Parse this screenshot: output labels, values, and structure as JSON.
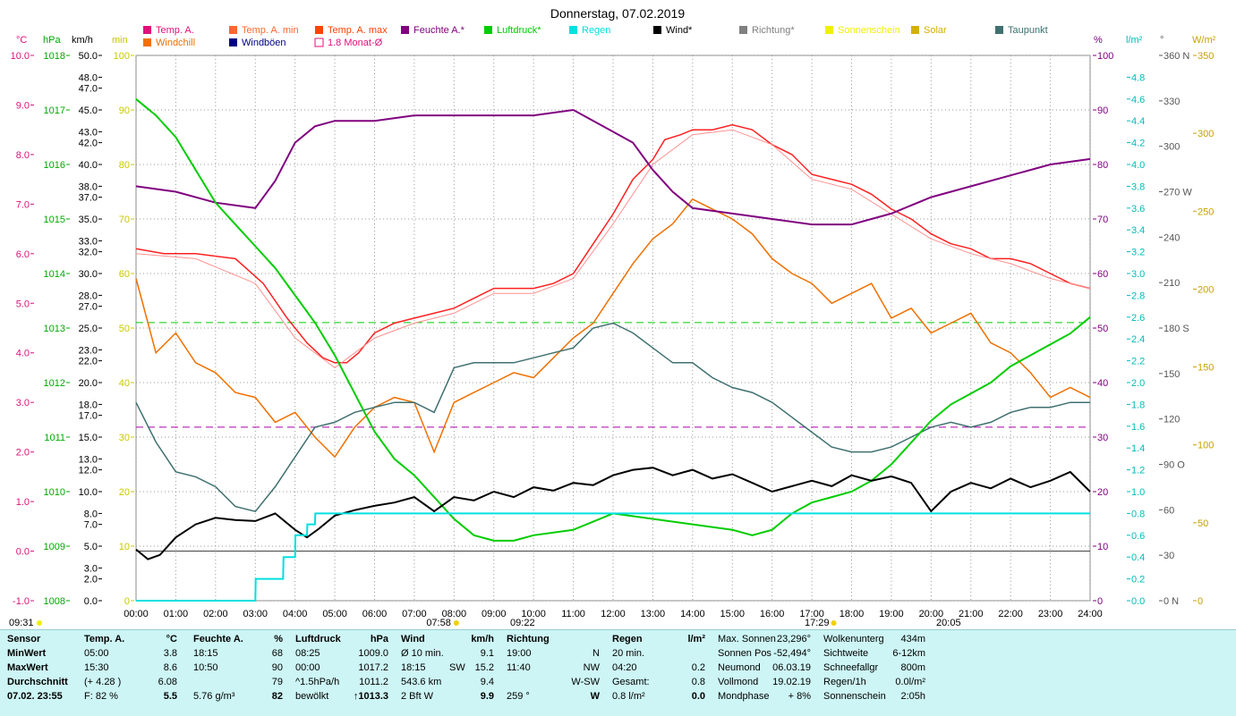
{
  "title": "Donnerstag, 07.02.2019",
  "legend": [
    {
      "label": "Temp. A.",
      "color": "#e0107a"
    },
    {
      "label": "Windchill",
      "color": "#f07000"
    },
    {
      "label": "Temp. A. min",
      "color": "#ff6633"
    },
    {
      "label": "Windböen",
      "color": "#000080"
    },
    {
      "label": "Temp. A. max",
      "color": "#ff4400"
    },
    {
      "label": "1.8 Monat-Ø",
      "color": "#e0107a"
    },
    {
      "label": "Feuchte A.*",
      "color": "#800080"
    },
    {
      "label": "Luftdruck*",
      "color": "#00cc00"
    },
    {
      "label": "Regen",
      "color": "#00e0e0"
    },
    {
      "label": "Wind*",
      "color": "#000000"
    },
    {
      "label": "Richtung*",
      "color": "#808080"
    },
    {
      "label": "Sonnenschein",
      "color": "#f0f000"
    },
    {
      "label": "Solar",
      "color": "#d4b000"
    },
    {
      "label": "Taupunkt",
      "color": "#407070"
    }
  ],
  "axis_units": {
    "temp": "°C",
    "hpa": "hPa",
    "kmh": "km/h",
    "min": "min",
    "pct": "%",
    "rain": "l/m²",
    "deg": "°",
    "solar": "W/m²"
  },
  "axis_ticks": {
    "temp": [
      "10.0",
      "9.0",
      "8.0",
      "7.0",
      "6.0",
      "5.0",
      "4.0",
      "3.0",
      "2.0",
      "1.0",
      "0.0",
      "-1.0"
    ],
    "hpa": [
      "1018",
      "1017",
      "1016",
      "1015",
      "1014",
      "1013",
      "1012",
      "1011",
      "1010",
      "1009",
      "1008"
    ],
    "kmh": [
      "50.0",
      "48.0",
      "47.0",
      "45.0",
      "43.0",
      "42.0",
      "40.0",
      "38.0",
      "37.0",
      "35.0",
      "33.0",
      "32.0",
      "30.0",
      "28.0",
      "27.0",
      "25.0",
      "23.0",
      "22.0",
      "20.0",
      "18.0",
      "17.0",
      "15.0",
      "13.0",
      "12.0",
      "10.0",
      "8.0",
      "7.0",
      "5.0",
      "3.0",
      "2.0",
      "0.0"
    ],
    "min": [
      "100",
      "90",
      "80",
      "70",
      "60",
      "50",
      "40",
      "30",
      "20",
      "10",
      "0"
    ],
    "pct": [
      "100",
      "90",
      "80",
      "70",
      "60",
      "50",
      "40",
      "30",
      "20",
      "10",
      "0"
    ],
    "rain": [
      "4.8",
      "4.6",
      "4.4",
      "4.2",
      "4.0",
      "3.8",
      "3.6",
      "3.4",
      "3.2",
      "3.0",
      "2.8",
      "2.6",
      "2.4",
      "2.2",
      "2.0",
      "1.8",
      "1.6",
      "1.4",
      "1.2",
      "1.0",
      "0.8",
      "0.6",
      "0.4",
      "0.2",
      "0.0"
    ],
    "deg": [
      "360 N",
      "330",
      "300",
      "270 W",
      "240",
      "210",
      "180 S",
      "150",
      "120",
      "90 O",
      "60",
      "30",
      "0 N"
    ],
    "solar": [
      "350",
      "300",
      "250",
      "200",
      "150",
      "100",
      "50",
      "0"
    ],
    "time": [
      "00:00",
      "01:00",
      "02:00",
      "03:00",
      "04:00",
      "05:00",
      "06:00",
      "07:00",
      "08:00",
      "09:00",
      "10:00",
      "11:00",
      "12:00",
      "13:00",
      "14:00",
      "15:00",
      "16:00",
      "17:00",
      "18:00",
      "19:00",
      "20:00",
      "21:00",
      "22:00",
      "23:00",
      "24:00"
    ]
  },
  "markers": {
    "moon_left": "09:31",
    "sunrise": "07:58",
    "noon": "09:22",
    "sunset": "17:29",
    "moonset": "20:05"
  },
  "chart_data": {
    "type": "line",
    "title": "Donnerstag, 07.02.2019",
    "x_unit": "hour",
    "x_range": [
      0,
      24
    ],
    "series": [
      {
        "name": "Temp. A.",
        "unit": "°C",
        "axis": "temp",
        "range": [
          -1,
          10
        ],
        "color": "#ff2020",
        "x": [
          0,
          0.7,
          1.5,
          2.5,
          3.2,
          3.8,
          4.3,
          4.7,
          5.0,
          5.3,
          5.6,
          6.0,
          6.5,
          7.0,
          7.5,
          8.0,
          8.5,
          9.0,
          9.5,
          10.0,
          10.5,
          11.0,
          11.5,
          12.0,
          12.5,
          13.0,
          13.3,
          13.7,
          14.0,
          14.5,
          15.0,
          15.5,
          16.0,
          16.5,
          17.0,
          17.5,
          18.0,
          18.5,
          19.0,
          19.5,
          20.0,
          20.5,
          21.0,
          21.5,
          22.0,
          22.5,
          23.0,
          23.5,
          24.0
        ],
        "y": [
          6.1,
          6.0,
          6.0,
          5.9,
          5.4,
          4.7,
          4.2,
          3.9,
          3.8,
          3.8,
          4.0,
          4.4,
          4.6,
          4.7,
          4.8,
          4.9,
          5.1,
          5.3,
          5.3,
          5.3,
          5.4,
          5.6,
          6.2,
          6.8,
          7.5,
          7.9,
          8.3,
          8.4,
          8.5,
          8.5,
          8.6,
          8.5,
          8.2,
          8.0,
          7.6,
          7.5,
          7.4,
          7.2,
          6.9,
          6.7,
          6.4,
          6.2,
          6.1,
          5.9,
          5.9,
          5.8,
          5.6,
          5.4,
          5.3
        ]
      },
      {
        "name": "Temp. A. min",
        "unit": "°C",
        "axis": "temp",
        "range": [
          -1,
          10
        ],
        "color": "#ff9090",
        "x": [
          0,
          1.5,
          3.0,
          4.0,
          5.0,
          6.0,
          7.0,
          8.0,
          9.0,
          10.0,
          11.0,
          12.0,
          13.0,
          14.0,
          15.0,
          16.0,
          17.0,
          18.0,
          19.0,
          20.0,
          21.0,
          22.0,
          23.0,
          24.0
        ],
        "y": [
          6.0,
          5.9,
          5.4,
          4.3,
          3.7,
          4.3,
          4.6,
          4.8,
          5.2,
          5.2,
          5.5,
          6.6,
          7.8,
          8.4,
          8.5,
          8.2,
          7.5,
          7.3,
          6.8,
          6.3,
          6.0,
          5.8,
          5.5,
          5.3
        ]
      },
      {
        "name": "Windchill",
        "unit": "°C",
        "axis": "temp",
        "range": [
          -1,
          10
        ],
        "color": "#f07000",
        "x": [
          0,
          0.5,
          1.0,
          1.5,
          2.0,
          2.5,
          3.0,
          3.5,
          4.0,
          4.5,
          5.0,
          5.5,
          6.0,
          6.5,
          7.0,
          7.5,
          8.0,
          8.5,
          9.0,
          9.5,
          10.0,
          10.5,
          11.0,
          11.5,
          12.0,
          12.5,
          13.0,
          13.5,
          14.0,
          14.5,
          15.0,
          15.5,
          16.0,
          16.5,
          17.0,
          17.5,
          18.0,
          18.5,
          19.0,
          19.5,
          20.0,
          20.5,
          21.0,
          21.5,
          22.0,
          22.5,
          23.0,
          23.5,
          24.0
        ],
        "y": [
          5.5,
          4.0,
          4.4,
          3.8,
          3.6,
          3.2,
          3.1,
          2.6,
          2.8,
          2.3,
          1.9,
          2.5,
          2.9,
          3.1,
          3.0,
          2.0,
          3.0,
          3.2,
          3.4,
          3.6,
          3.5,
          3.9,
          4.3,
          4.6,
          5.2,
          5.8,
          6.3,
          6.6,
          7.1,
          6.9,
          6.7,
          6.4,
          5.9,
          5.6,
          5.4,
          5.0,
          5.2,
          5.4,
          4.7,
          4.9,
          4.4,
          4.6,
          4.8,
          4.2,
          4.0,
          3.6,
          3.1,
          3.3,
          3.1
        ]
      },
      {
        "name": "Taupunkt",
        "unit": "°C",
        "axis": "temp",
        "range": [
          -1,
          10
        ],
        "color": "#407070",
        "x": [
          0,
          0.5,
          1.0,
          1.5,
          2.0,
          2.5,
          3.0,
          3.5,
          4.0,
          4.5,
          5.0,
          5.5,
          6.0,
          6.5,
          7.0,
          7.5,
          8.0,
          8.5,
          9.0,
          9.5,
          10.0,
          10.5,
          11.0,
          11.5,
          12.0,
          12.5,
          13.0,
          13.5,
          14.0,
          14.5,
          15.0,
          15.5,
          16.0,
          16.5,
          17.0,
          17.5,
          18.0,
          18.5,
          19.0,
          19.5,
          20.0,
          20.5,
          21.0,
          21.5,
          22.0,
          22.5,
          23.0,
          23.5,
          24.0
        ],
        "y": [
          3.0,
          2.2,
          1.6,
          1.5,
          1.3,
          0.9,
          0.8,
          1.3,
          1.9,
          2.5,
          2.6,
          2.8,
          2.9,
          3.0,
          3.0,
          2.8,
          3.7,
          3.8,
          3.8,
          3.8,
          3.9,
          4.0,
          4.1,
          4.5,
          4.6,
          4.4,
          4.1,
          3.8,
          3.8,
          3.5,
          3.3,
          3.2,
          3.0,
          2.7,
          2.4,
          2.1,
          2.0,
          2.0,
          2.1,
          2.3,
          2.5,
          2.6,
          2.5,
          2.6,
          2.8,
          2.9,
          2.9,
          3.0,
          3.0
        ]
      },
      {
        "name": "Feuchte A.*",
        "unit": "%",
        "axis": "pct",
        "range": [
          0,
          100
        ],
        "color": "#800080",
        "x": [
          0,
          1.0,
          2.0,
          3.0,
          3.5,
          4.0,
          4.5,
          5.0,
          6.0,
          7.0,
          8.0,
          9.0,
          10.0,
          11.0,
          12.0,
          12.5,
          13.0,
          13.5,
          14.0,
          15.0,
          16.0,
          17.0,
          18.0,
          19.0,
          20.0,
          21.0,
          22.0,
          23.0,
          24.0
        ],
        "y": [
          76,
          75,
          73,
          72,
          77,
          84,
          87,
          88,
          88,
          89,
          89,
          89,
          89,
          90,
          86,
          84,
          79,
          75,
          72,
          71,
          70,
          69,
          69,
          71,
          74,
          76,
          78,
          80,
          81
        ]
      },
      {
        "name": "Luftdruck*",
        "unit": "hPa",
        "axis": "hpa",
        "range": [
          1008,
          1018
        ],
        "color": "#00cc00",
        "x": [
          0,
          0.5,
          1.0,
          1.5,
          2.0,
          2.5,
          3.0,
          3.5,
          4.0,
          4.5,
          5.0,
          5.5,
          6.0,
          6.5,
          7.0,
          7.5,
          8.0,
          8.5,
          9.0,
          9.5,
          10.0,
          11.0,
          12.0,
          13.0,
          14.0,
          15.0,
          15.5,
          16.0,
          16.5,
          17.0,
          17.5,
          18.0,
          18.5,
          19.0,
          19.5,
          20.0,
          20.5,
          21.0,
          21.5,
          22.0,
          22.5,
          23.0,
          23.5,
          24.0
        ],
        "y": [
          1017.2,
          1016.9,
          1016.5,
          1015.9,
          1015.3,
          1014.9,
          1014.5,
          1014.1,
          1013.6,
          1013.1,
          1012.5,
          1011.8,
          1011.1,
          1010.6,
          1010.3,
          1009.9,
          1009.5,
          1009.2,
          1009.1,
          1009.1,
          1009.2,
          1009.3,
          1009.6,
          1009.5,
          1009.4,
          1009.3,
          1009.2,
          1009.3,
          1009.6,
          1009.8,
          1009.9,
          1010.0,
          1010.2,
          1010.5,
          1010.9,
          1011.3,
          1011.6,
          1011.8,
          1012.0,
          1012.3,
          1012.5,
          1012.7,
          1012.9,
          1013.2
        ]
      },
      {
        "name": "Wind*",
        "unit": "km/h",
        "axis": "kmh",
        "range": [
          0,
          50
        ],
        "color": "#000000",
        "x": [
          0,
          0.3,
          0.6,
          1.0,
          1.5,
          2.0,
          2.5,
          3.0,
          3.5,
          4.0,
          4.3,
          4.6,
          5.0,
          5.5,
          6.0,
          6.5,
          7.0,
          7.5,
          8.0,
          8.5,
          9.0,
          9.5,
          10.0,
          10.5,
          11.0,
          11.5,
          12.0,
          12.5,
          13.0,
          13.5,
          14.0,
          14.5,
          15.0,
          15.5,
          16.0,
          16.5,
          17.0,
          17.5,
          18.0,
          18.5,
          19.0,
          19.5,
          20.0,
          20.5,
          21.0,
          21.5,
          22.0,
          22.5,
          23.0,
          23.5,
          24.0
        ],
        "y": [
          4.7,
          3.8,
          4.2,
          5.8,
          7.0,
          7.6,
          7.4,
          7.3,
          8.0,
          6.5,
          5.8,
          6.6,
          7.8,
          8.3,
          8.7,
          9.0,
          9.5,
          8.2,
          9.5,
          9.2,
          10.0,
          9.5,
          10.4,
          10.1,
          10.8,
          10.6,
          11.5,
          12.0,
          12.2,
          11.5,
          12.0,
          11.2,
          11.6,
          10.8,
          10.0,
          10.5,
          11.0,
          10.5,
          11.5,
          11.0,
          11.4,
          10.8,
          8.2,
          10.0,
          10.8,
          10.3,
          11.2,
          10.4,
          11.0,
          11.8,
          10.0
        ]
      },
      {
        "name": "Regen",
        "unit": "l/m²",
        "axis": "rain",
        "range": [
          0,
          5
        ],
        "color": "#00e0e0",
        "x": [
          0,
          3.0,
          3.01,
          3.7,
          3.71,
          4.0,
          4.01,
          4.3,
          4.31,
          4.5,
          4.51,
          24
        ],
        "y": [
          0,
          0,
          0.2,
          0.2,
          0.4,
          0.4,
          0.6,
          0.6,
          0.7,
          0.7,
          0.8,
          0.8
        ]
      }
    ]
  },
  "stats": {
    "sensor": {
      "h": "Sensor",
      "rows": [
        "MinWert",
        "MaxWert",
        "Durchschnitt"
      ],
      "date": "07.02. 23:55"
    },
    "temp": {
      "h": "Temp. A.",
      "u": "°C",
      "rows": [
        [
          "05:00",
          "3.8"
        ],
        [
          "15:30",
          "8.6"
        ],
        [
          "(+ 4.28 )",
          "6.08"
        ]
      ],
      "cur_l": "F: 82 %",
      "cur": "5.5"
    },
    "hum": {
      "h": "Feuchte A.",
      "u": "%",
      "rows": [
        [
          "18:15",
          "68"
        ],
        [
          "10:50",
          "90"
        ],
        [
          "",
          "79"
        ]
      ],
      "cur_l": "5.76 g/m³",
      "cur": "82"
    },
    "press": {
      "h": "Luftdruck",
      "u": "hPa",
      "rows": [
        [
          "08:25",
          "1009.0"
        ],
        [
          "00:00",
          "1017.2"
        ],
        [
          "^1.5hPa/h",
          "1011.2"
        ]
      ],
      "cur_l": "bewölkt",
      "cur": "↑1013.3"
    },
    "wind": {
      "h": "Wind",
      "u": "km/h",
      "rows": [
        [
          "Ø 10 min.",
          "",
          "9.1"
        ],
        [
          "18:15",
          "SW",
          "15.2"
        ],
        [
          "543.6 km",
          "",
          "9.4"
        ]
      ],
      "cur_l": "2 Bft W",
      "cur": "9.9"
    },
    "dir": {
      "h": "Richtung",
      "rows": [
        [
          "19:00",
          "N"
        ],
        [
          "11:40",
          "NW"
        ],
        [
          "",
          "W-SW"
        ]
      ],
      "cur_l": "259 °",
      "cur": "W"
    },
    "rain": {
      "h": "Regen",
      "u": "l/m²",
      "rows": [
        [
          "20 min.",
          ""
        ],
        [
          "04:20",
          "0.2"
        ],
        [
          "Gesamt:",
          "0.8"
        ]
      ],
      "cur_l": "0.8 l/m²",
      "cur": "0.0"
    },
    "astro": [
      [
        "Max. Sonnen",
        "23,296°"
      ],
      [
        "Sonnen Pos",
        "-52,494°"
      ],
      [
        "Neumond",
        "06.03.19"
      ],
      [
        "Vollmond",
        "19.02.19"
      ],
      [
        "Mondphase",
        "+ 8%"
      ]
    ],
    "misc": [
      [
        "Wolkenunterg",
        "434m"
      ],
      [
        "Sichtweite",
        "6-12km"
      ],
      [
        "Schneefallgr",
        "800m"
      ],
      [
        "Regen/1h",
        "0.0l/m²"
      ],
      [
        "Sonnenschein",
        "2:05h"
      ]
    ]
  }
}
